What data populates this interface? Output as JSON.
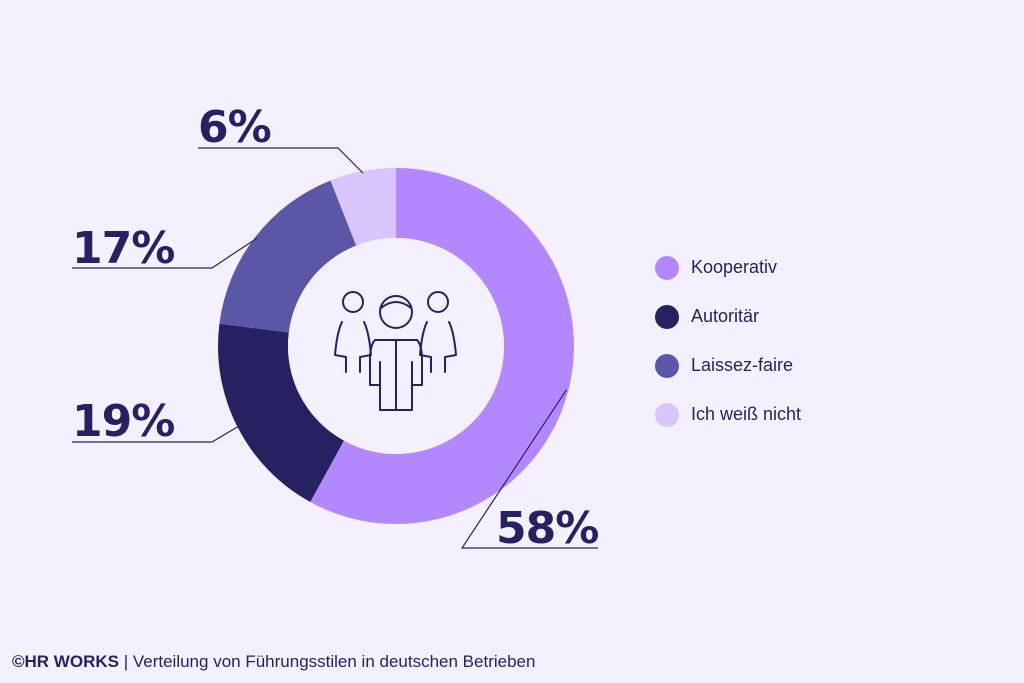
{
  "chart_data": {
    "type": "pie",
    "categories": [
      "Kooperativ",
      "Autoritär",
      "Laissez-faire",
      "Ich weiß nicht"
    ],
    "values": [
      58,
      19,
      17,
      6
    ],
    "value_labels": [
      "58%",
      "19%",
      "17%",
      "6%"
    ],
    "colors": [
      "#b388ff",
      "#262262",
      "#5c56a6",
      "#d9c4fc"
    ],
    "donut": true,
    "center_icon": "people-group-icon",
    "legend_position": "right"
  },
  "footer": {
    "copyright": "©",
    "brand": "HR WORKS",
    "separator": " | ",
    "caption": "Verteilung von Führungsstilen in deutschen Betrieben"
  }
}
